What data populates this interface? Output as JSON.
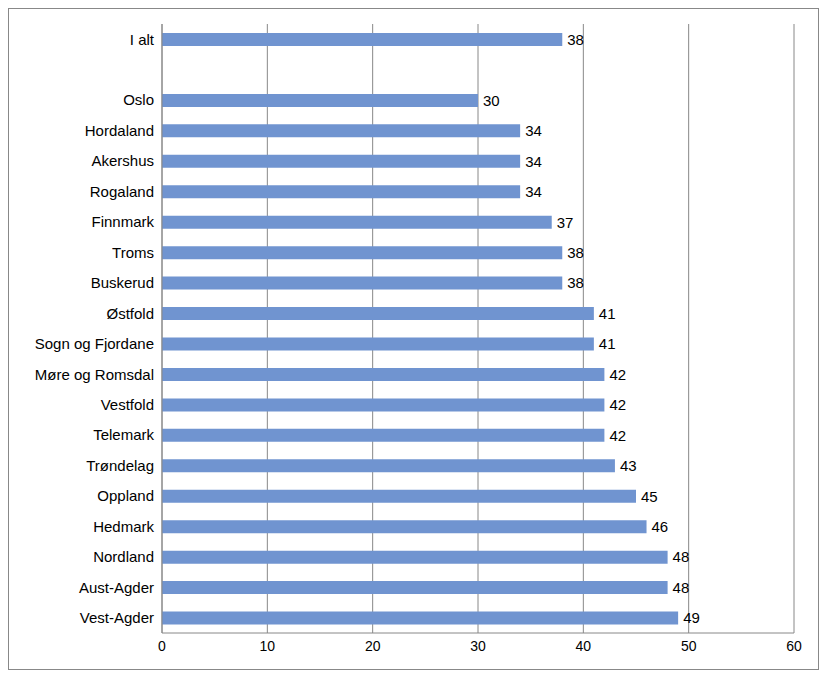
{
  "chart_data": {
    "type": "bar",
    "orientation": "horizontal",
    "categories": [
      "I alt",
      null,
      "Oslo",
      "Hordaland",
      "Akershus",
      "Rogaland",
      "Finnmark",
      "Troms",
      "Buskerud",
      "Østfold",
      "Sogn og Fjordane",
      "Møre og Romsdal",
      "Vestfold",
      "Telemark",
      "Trøndelag",
      "Oppland",
      "Hedmark",
      "Nordland",
      "Aust-Agder",
      "Vest-Agder"
    ],
    "values": [
      38,
      null,
      30,
      34,
      34,
      34,
      37,
      38,
      38,
      41,
      41,
      42,
      42,
      42,
      43,
      45,
      46,
      48,
      48,
      49
    ],
    "color": "#7094d0",
    "xlim": [
      0,
      60
    ],
    "xticks": [
      0,
      10,
      20,
      30,
      40,
      50,
      60
    ],
    "grid": true,
    "data_labels": true
  }
}
